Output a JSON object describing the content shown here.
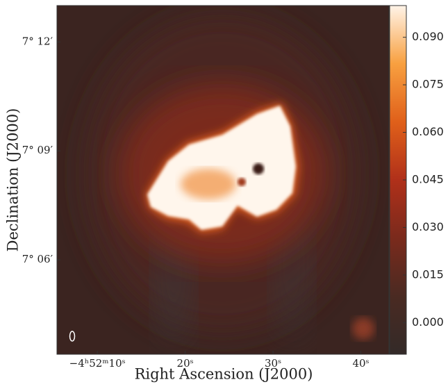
{
  "chart_data": {
    "type": "image",
    "x_label": "Right Ascension (J2000)",
    "y_label": "Declination (J2000)",
    "xlim": [
      5.4,
      43.2
    ],
    "xticks": [
      {
        "value": 10,
        "label": "−4ʰ52ᵐ10ˢ"
      },
      {
        "value": 20,
        "label": "20ˢ"
      },
      {
        "value": 30,
        "label": "30ˢ"
      },
      {
        "value": 40,
        "label": "40ˢ"
      }
    ],
    "ylim": [
      3.4,
      13.0
    ],
    "yticks": [
      {
        "value": 6,
        "label": "7° 06′"
      },
      {
        "value": 9,
        "label": "7° 09′"
      },
      {
        "value": 12,
        "label": "7° 12′"
      }
    ],
    "colorbar_lim": [
      -0.01,
      0.1
    ],
    "colorbar_ticks": [
      {
        "value": 0,
        "label": "0.000"
      },
      {
        "value": 0.015,
        "label": "0.015"
      },
      {
        "value": 0.03,
        "label": "0.030"
      },
      {
        "value": 0.045,
        "label": "0.045"
      },
      {
        "value": 0.06,
        "label": "0.060"
      },
      {
        "value": 0.075,
        "label": "0.075"
      },
      {
        "value": 0.09,
        "label": "0.090"
      }
    ],
    "colormap": [
      "#332a28",
      "#4a2a22",
      "#7a2a1c",
      "#b0301a",
      "#e0601a",
      "#f8a040",
      "#fff4e8"
    ]
  }
}
